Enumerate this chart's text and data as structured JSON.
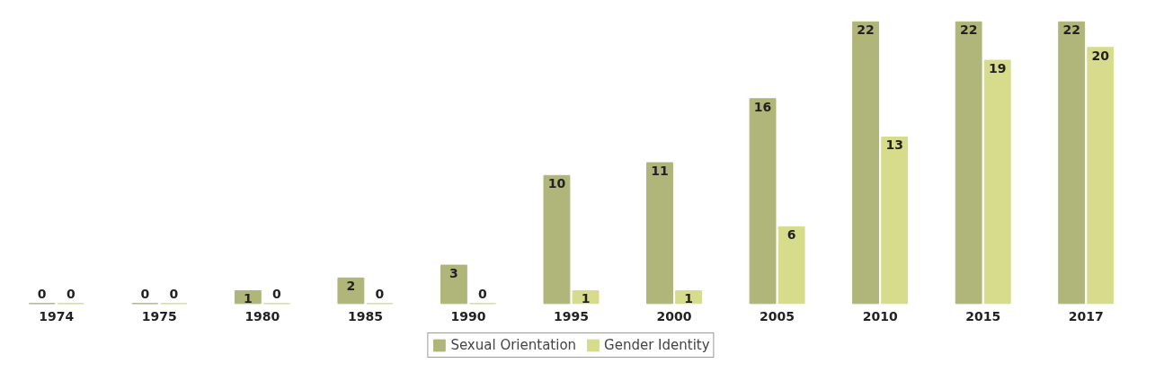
{
  "chart_data": {
    "type": "bar",
    "categories": [
      "1974",
      "1975",
      "1980",
      "1985",
      "1990",
      "1995",
      "2000",
      "2005",
      "2010",
      "2015",
      "2017"
    ],
    "series": [
      {
        "name": "Sexual Orientation",
        "color": "#b0b57a",
        "values": [
          0,
          0,
          1,
          2,
          3,
          10,
          11,
          16,
          22,
          22,
          22
        ]
      },
      {
        "name": "Gender Identity",
        "color": "#d6dc8c",
        "values": [
          0,
          0,
          0,
          0,
          0,
          1,
          1,
          6,
          13,
          19,
          20
        ]
      }
    ],
    "data_labels": true,
    "legend": "bottom",
    "grid": false
  }
}
